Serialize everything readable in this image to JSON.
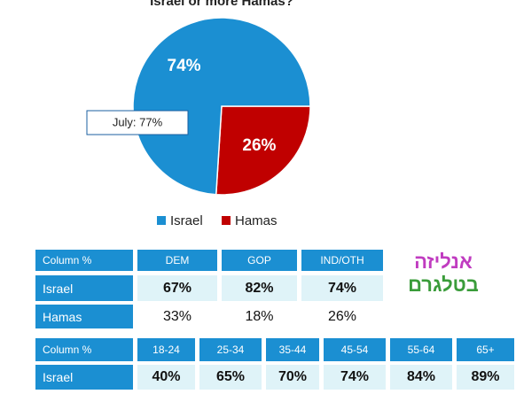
{
  "chart_data": {
    "type": "pie",
    "title": "Israel or more Hamas?",
    "categories": [
      "Israel",
      "Hamas"
    ],
    "values": [
      74,
      26
    ],
    "value_labels": [
      "74%",
      "26%"
    ],
    "colors": [
      "#1b8fd2",
      "#c00000"
    ],
    "annotation": "July: 77%",
    "legend": "bottom"
  },
  "logo": {
    "lines": [
      "אנליזה",
      "בטלגרם"
    ]
  },
  "tables": [
    {
      "header": [
        "Column %",
        "DEM",
        "GOP",
        "IND/OTH"
      ],
      "rows": [
        [
          "Israel",
          "67%",
          "82%",
          "74%"
        ],
        [
          "Hamas",
          "33%",
          "18%",
          "26%"
        ]
      ]
    },
    {
      "header": [
        "Column %",
        "18-24",
        "25-34",
        "35-44",
        "45-54",
        "55-64",
        "65+"
      ],
      "rows": [
        [
          "Israel",
          "40%",
          "65%",
          "70%",
          "74%",
          "84%",
          "89%"
        ]
      ]
    }
  ]
}
